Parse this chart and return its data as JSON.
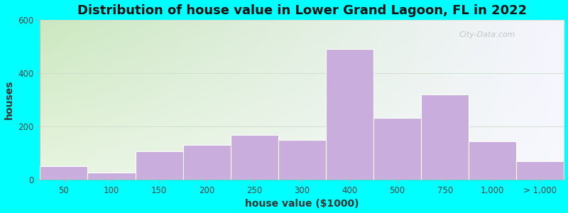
{
  "title": "Distribution of house value in Lower Grand Lagoon, FL in 2022",
  "xlabel": "house value ($1000)",
  "ylabel": "houses",
  "bar_color": "#c9aedd",
  "background_outer": "#00ffff",
  "ylim": [
    0,
    600
  ],
  "yticks": [
    0,
    200,
    400,
    600
  ],
  "tick_labels": [
    "50",
    "100",
    "150",
    "200",
    "250",
    "300",
    "400",
    "500",
    "750",
    "1,000",
    "> 1,000"
  ],
  "values": [
    50,
    25,
    105,
    130,
    168,
    148,
    490,
    232,
    320,
    143,
    70
  ],
  "bin_lefts": [
    0,
    1,
    2,
    3,
    4,
    5,
    6,
    7,
    8,
    9,
    10
  ],
  "bin_widths": [
    1,
    1,
    1,
    1,
    1,
    1,
    1,
    1,
    1,
    1,
    1
  ],
  "xtick_positions": [
    0.5,
    1.5,
    2.5,
    3.5,
    4.5,
    5.5,
    6.5,
    7.5,
    8.5,
    9.5,
    10.5
  ],
  "title_fontsize": 13,
  "axis_fontsize": 10,
  "tick_fontsize": 8.5,
  "watermark": "City-Data.com",
  "grid_color": "#cccccc",
  "gradient_top_left": "#d4edc8",
  "gradient_top_right": "#e8f0e8",
  "gradient_bottom": "#f5f0fa"
}
